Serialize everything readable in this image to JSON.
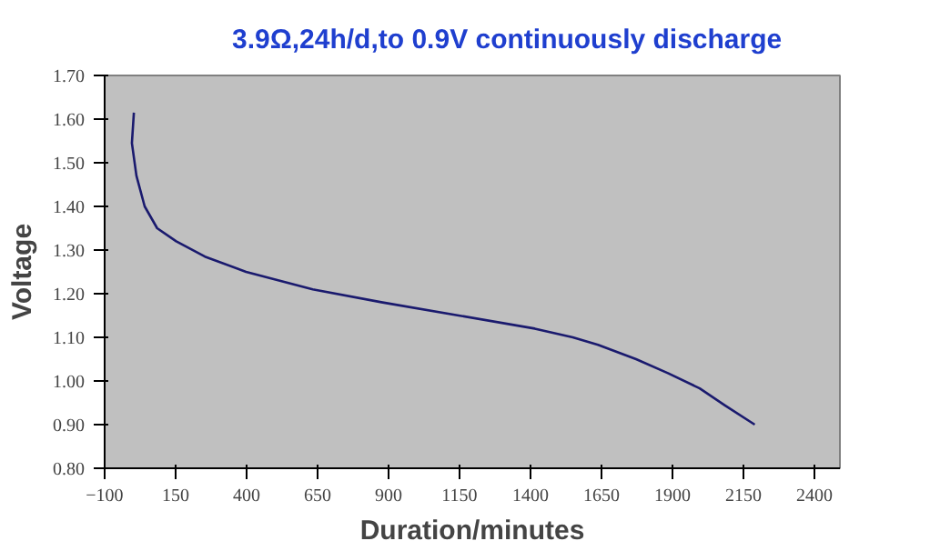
{
  "chart_data": {
    "type": "line",
    "title": "3.9Ω,24h/d,to 0.9V continuously discharge",
    "xlabel": "Duration/minutes",
    "ylabel": "Voltage",
    "xlim": [
      -100,
      2490
    ],
    "xticks": [
      -100,
      150,
      400,
      650,
      900,
      1150,
      1400,
      1650,
      1900,
      2150,
      2400
    ],
    "ylim": [
      0.8,
      1.7
    ],
    "yticks": [
      {
        "value": 0.8,
        "label": "0.80"
      },
      {
        "value": 0.9,
        "label": "0.90"
      },
      {
        "value": 1.0,
        "label": "1.00"
      },
      {
        "value": 1.1,
        "label": "1.10"
      },
      {
        "value": 1.2,
        "label": "1.20"
      },
      {
        "value": 1.3,
        "label": "1.30"
      },
      {
        "value": 1.4,
        "label": "1.40"
      },
      {
        "value": 1.5,
        "label": "1.50"
      },
      {
        "value": 1.6,
        "label": "1.60"
      },
      {
        "value": 1.7,
        "label": "1.70"
      }
    ],
    "grid": false,
    "series": [
      {
        "color": "#1a1a6e",
        "x": [
          3,
          -4,
          12,
          41,
          85,
          152,
          253,
          398,
          633,
          879,
          1147,
          1415,
          1549,
          1638,
          1772,
          1884,
          1996,
          2085,
          2190
        ],
        "values": [
          1.615,
          1.545,
          1.47,
          1.4,
          1.35,
          1.32,
          1.285,
          1.25,
          1.21,
          1.18,
          1.15,
          1.12,
          1.1,
          1.083,
          1.05,
          1.018,
          0.983,
          0.944,
          0.9
        ]
      }
    ]
  }
}
